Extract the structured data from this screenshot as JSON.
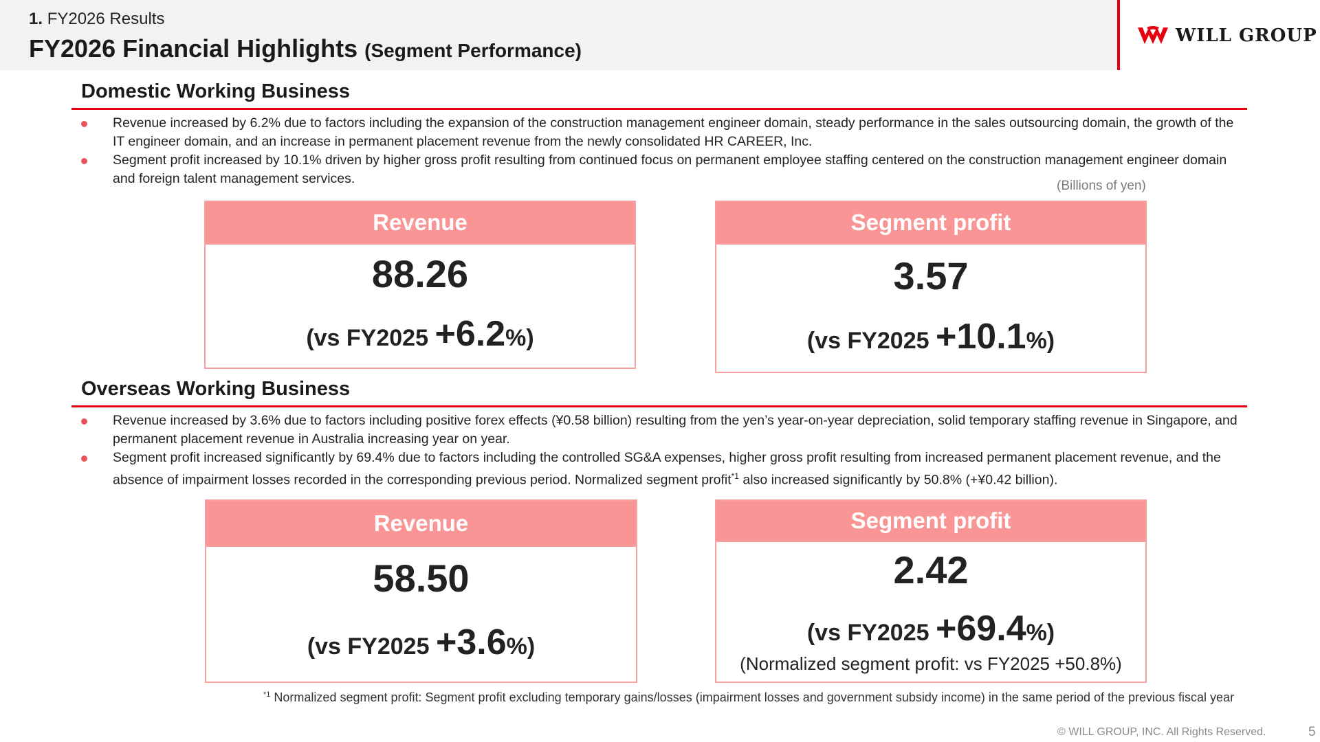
{
  "header": {
    "section_number": "1.",
    "section_name": "FY2026 Results",
    "title": "FY2026 Financial Highlights",
    "title_sub": "(Segment Performance)"
  },
  "logo": {
    "text": "WILL GROUP",
    "icon": "will-group-logo-icon",
    "color": "#e60012"
  },
  "units_label": "(Billions of yen)",
  "domestic": {
    "title": "Domestic Working Business",
    "bullets": [
      "Revenue increased by 6.2% due to factors including the expansion of the construction management engineer domain, steady performance in the sales outsourcing domain, the growth of the IT engineer domain, and an increase in permanent placement revenue from the newly consolidated HR CAREER, Inc.",
      "Segment profit increased by 10.1% driven by higher gross profit resulting from continued focus on permanent employee staffing centered on the construction management engineer domain and foreign talent management services."
    ],
    "revenue": {
      "label": "Revenue",
      "value": "88.26",
      "compare_prefix": "(vs FY2025 ",
      "pct": "+6.2",
      "compare_suffix": "%)"
    },
    "profit": {
      "label": "Segment profit",
      "value": "3.57",
      "compare_prefix": "(vs FY2025 ",
      "pct": "+10.1",
      "compare_suffix": "%)"
    }
  },
  "overseas": {
    "title": "Overseas Working Business",
    "bullets": [
      "Revenue increased by 3.6% due to factors including positive forex effects (¥0.58 billion) resulting from the yen’s year-on-year depreciation, solid temporary staffing revenue in Singapore, and permanent placement revenue in Australia increasing year on year.",
      "Segment profit increased significantly by 69.4% due to factors including the controlled SG&A expenses, higher gross profit resulting from increased permanent placement revenue, and the absence of impairment losses recorded in the corresponding previous period. Normalized segment profit"
    ],
    "bullet2_sup": "*1",
    "bullet2_tail": " also increased significantly by 50.8% (+¥0.42 billion).",
    "revenue": {
      "label": "Revenue",
      "value": "58.50",
      "compare_prefix": "(vs FY2025 ",
      "pct": "+3.6",
      "compare_suffix": "%)"
    },
    "profit": {
      "label": "Segment profit",
      "value": "2.42",
      "compare_prefix": "(vs FY2025 ",
      "pct": "+69.4",
      "compare_suffix": "%)",
      "note": "(Normalized segment profit: vs FY2025 +50.8%)"
    }
  },
  "footnote": {
    "marker": "*1",
    "text": "Normalized segment profit: Segment profit excluding temporary gains/losses (impairment losses and government subsidy income) in the same period of the previous fiscal year"
  },
  "footer": {
    "copyright": "© WILL GROUP, INC. All Rights Reserved.",
    "page_number": "5"
  },
  "colors": {
    "accent_red": "#e60012",
    "card_header": "#f99595",
    "bullet_dot": "#e8545b"
  }
}
